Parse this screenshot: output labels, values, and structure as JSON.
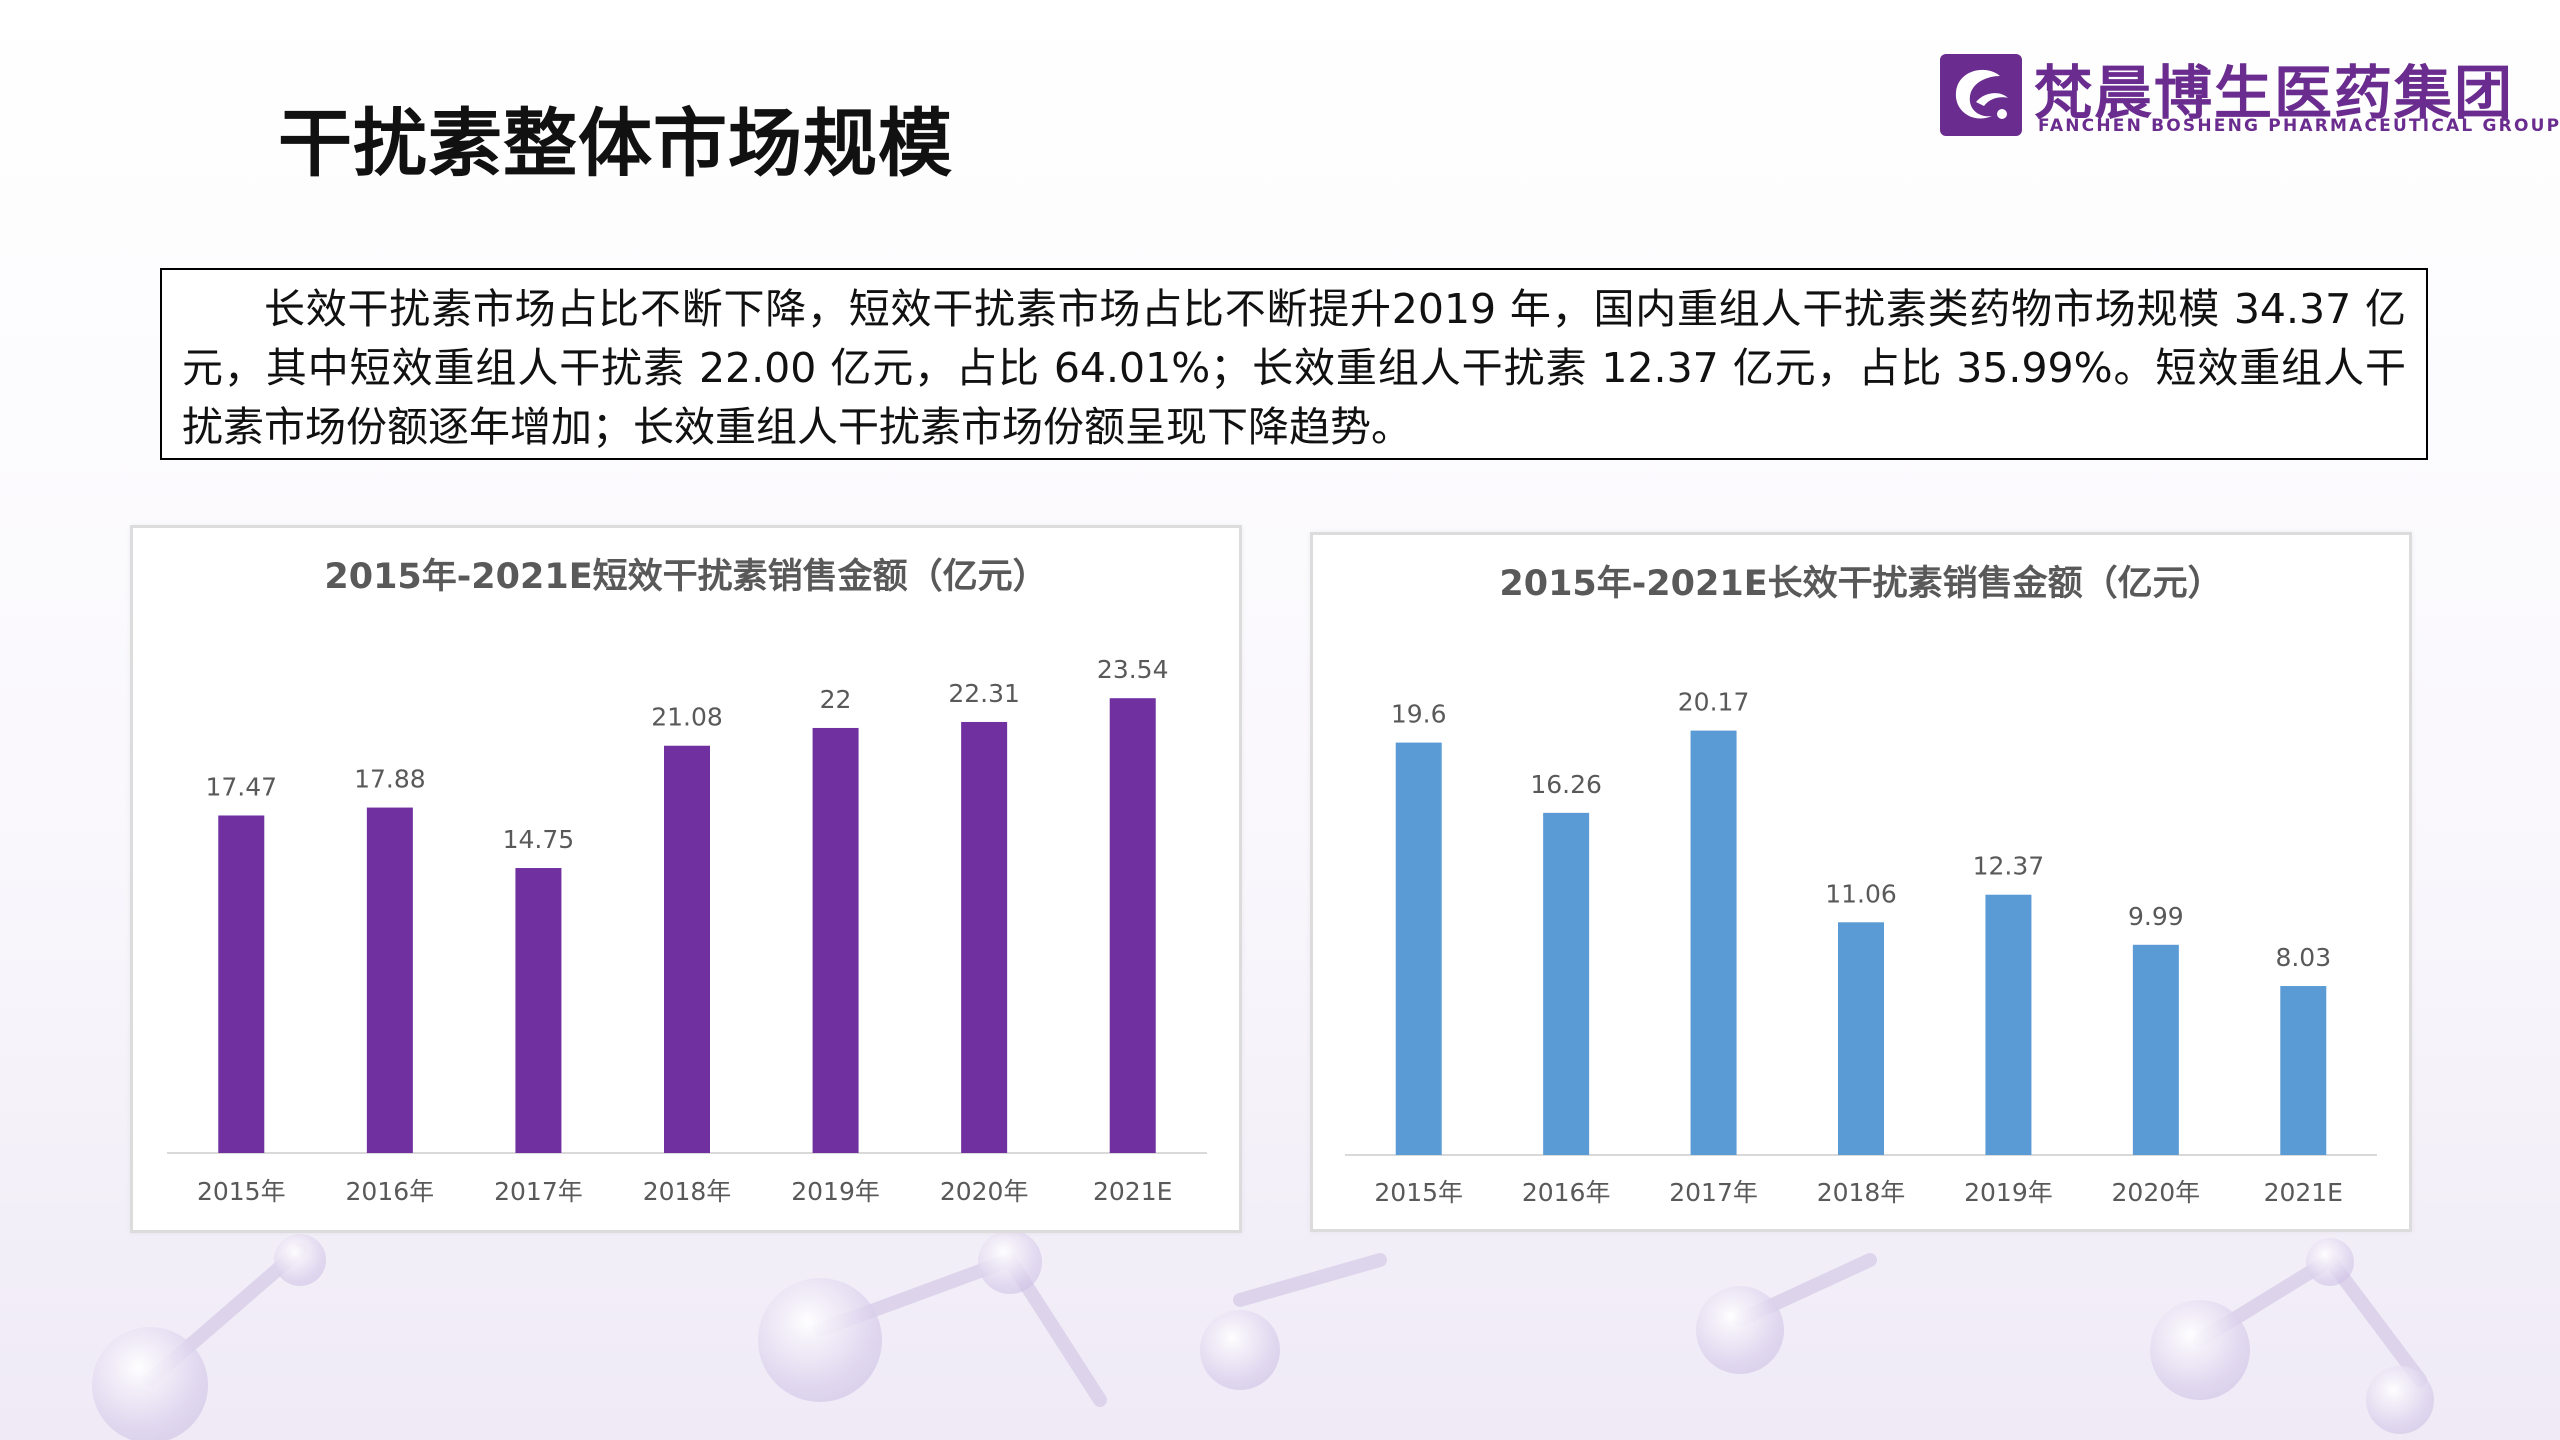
{
  "page": {
    "title": "干扰素整体市场规模"
  },
  "logo": {
    "name_cn": "梵晨博生医药集团",
    "name_en": "FANCHEN BOSHENG PHARMACEUTICAL GROUP",
    "brand_color": "#6a2c8e"
  },
  "summary": {
    "text": "长效干扰素市场占比不断下降，短效干扰素市场占比不断提升2019 年，国内重组人干扰素类药物市场规模 34.37 亿元，其中短效重组人干扰素 22.00 亿元，占比 64.01%；长效重组人干扰素 12.37 亿元，占比 35.99%。短效重组人干扰素市场份额逐年增加；长效重组人干扰素市场份额呈现下降趋势。"
  },
  "chart_data": [
    {
      "type": "bar",
      "title": "2015年-2021E短效干扰素销售金额（亿元）",
      "categories": [
        "2015年",
        "2016年",
        "2017年",
        "2018年",
        "2019年",
        "2020年",
        "2021E"
      ],
      "values": [
        17.47,
        17.88,
        14.75,
        21.08,
        22,
        22.31,
        23.54
      ],
      "value_labels": [
        "17.47",
        "17.88",
        "14.75",
        "21.08",
        "22",
        "22.31",
        "23.54"
      ],
      "ylim": [
        0,
        25
      ],
      "color": "#7030a0",
      "grid": false,
      "legend": "none"
    },
    {
      "type": "bar",
      "title": "2015年-2021E长效干扰素销售金额（亿元）",
      "categories": [
        "2015年",
        "2016年",
        "2017年",
        "2018年",
        "2019年",
        "2020年",
        "2021E"
      ],
      "values": [
        19.6,
        16.26,
        20.17,
        11.06,
        12.37,
        9.99,
        8.03
      ],
      "value_labels": [
        "19.6",
        "16.26",
        "20.17",
        "11.06",
        "12.37",
        "9.99",
        "8.03"
      ],
      "ylim": [
        0,
        24
      ],
      "color": "#5b9bd5",
      "grid": false,
      "legend": "none"
    }
  ]
}
